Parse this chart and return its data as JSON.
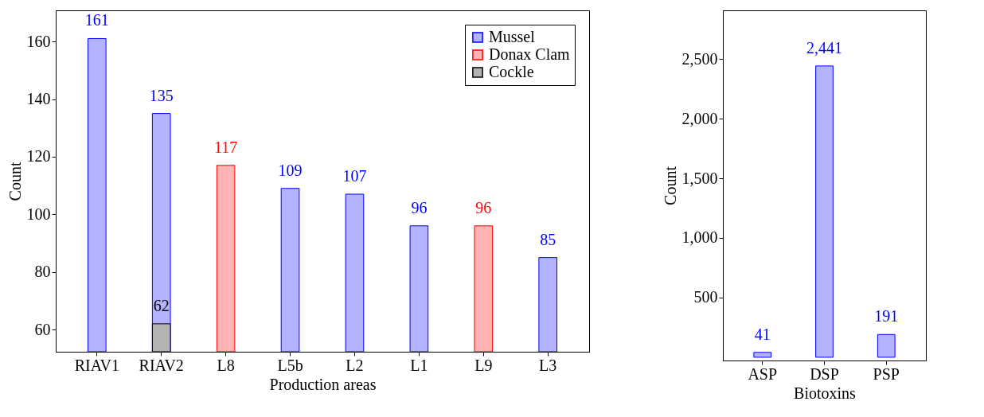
{
  "chart_data": [
    {
      "type": "bar",
      "xlabel": "Production areas",
      "ylabel": "Count",
      "categories": [
        "RIAV1",
        "RIAV2",
        "L8",
        "L5b",
        "L2",
        "L1",
        "L9",
        "L3"
      ],
      "ylim": [
        52.3,
        170.8
      ],
      "yticks": [
        60,
        80,
        100,
        120,
        140,
        160
      ],
      "data_labels": true,
      "legend": "top right",
      "series": [
        {
          "name": "Mussel",
          "color": "#b3b3ff",
          "values": [
            161,
            135,
            null,
            109,
            107,
            96,
            null,
            85
          ]
        },
        {
          "name": "Donax Clam",
          "color": "#ffb3b3",
          "values": [
            null,
            null,
            117,
            null,
            null,
            null,
            96,
            null
          ]
        },
        {
          "name": "Cockle",
          "color": "#b3b3b3",
          "values": [
            null,
            62,
            null,
            null,
            null,
            null,
            null,
            null
          ]
        }
      ]
    },
    {
      "type": "bar",
      "xlabel": "Biotoxins",
      "ylabel": "Count",
      "categories": [
        "ASP",
        "DSP",
        "PSP"
      ],
      "ylim": [
        -27,
        2907
      ],
      "yticks": [
        {
          "value": 500,
          "label": "500"
        },
        {
          "value": 1000,
          "label": "1,000"
        },
        {
          "value": 1500,
          "label": "1,500"
        },
        {
          "value": 2000,
          "label": "2,000"
        },
        {
          "value": 2500,
          "label": "2,500"
        }
      ],
      "series": [
        {
          "color": "#b3b3ff",
          "values": [
            41,
            2441,
            191
          ],
          "value_labels": [
            "41",
            "2,441",
            "191"
          ]
        }
      ]
    }
  ]
}
